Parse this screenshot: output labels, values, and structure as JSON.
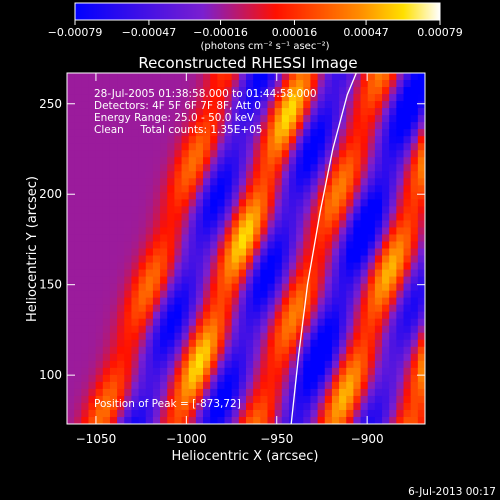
{
  "chart_data": {
    "type": "heatmap",
    "title": "Reconstructed RHESSI Image",
    "xlabel": "Heliocentric X (arcsec)",
    "ylabel": "Heliocentric Y (arcsec)",
    "xlim": [
      -1066,
      -868
    ],
    "ylim": [
      73,
      267
    ],
    "x_ticks": [
      -1050,
      -1000,
      -950,
      -900
    ],
    "y_ticks": [
      100,
      150,
      200,
      250
    ],
    "colorbar": {
      "ticks": [
        "-0.00079",
        "-0.00047",
        "-0.00016",
        "0.00016",
        "0.00047",
        "0.00079"
      ],
      "tick_values": [
        -0.00079,
        -0.00047,
        -0.00016,
        0.00016,
        0.00047,
        0.00079
      ],
      "unit_label": "(photons cm⁻² s⁻¹ asec⁻²)",
      "colors": [
        "#0000ff",
        "#7a1fd0",
        "#ff1000",
        "#ff8c00",
        "#ffffff"
      ]
    },
    "annotations": [
      "28-Jul-2005 01:38:58.000 to 01:44:58.000",
      "Detectors: 4F 5F 6F 7F 8F, Att 0",
      "Energy Range: 25.0 - 50.0 keV",
      "Clean     Total counts: 1.35E+05"
    ],
    "peak_label": "Position of Peak = [-873,72]",
    "limb_curve": [
      [
        -942,
        73
      ],
      [
        -938,
        110
      ],
      [
        -933,
        150
      ],
      [
        -926,
        190
      ],
      [
        -919,
        225
      ],
      [
        -911,
        255
      ],
      [
        -906,
        267
      ]
    ],
    "bands": [
      {
        "x0": -1048,
        "slope": 0.72,
        "sign": 1,
        "amp": 0.55
      },
      {
        "x0": -1028,
        "slope": 0.72,
        "sign": -1,
        "amp": 0.7
      },
      {
        "x0": -1005,
        "slope": 0.72,
        "sign": 1,
        "amp": 0.85
      },
      {
        "x0": -985,
        "slope": 0.72,
        "sign": -1,
        "amp": 0.75
      },
      {
        "x0": -962,
        "slope": 0.72,
        "sign": 1,
        "amp": 0.6
      },
      {
        "x0": -940,
        "slope": 0.72,
        "sign": -1,
        "amp": 0.9
      },
      {
        "x0": -918,
        "slope": 0.72,
        "sign": 1,
        "amp": 0.75
      },
      {
        "x0": -898,
        "slope": 0.72,
        "sign": -1,
        "amp": 0.55
      },
      {
        "x0": -877,
        "slope": 0.72,
        "sign": 1,
        "amp": 0.85
      }
    ]
  },
  "timestamp": "6-Jul-2013 00:17"
}
